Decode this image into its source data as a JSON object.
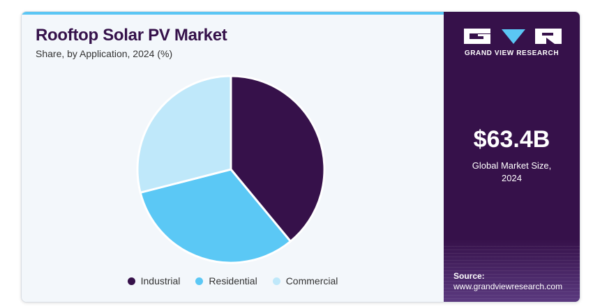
{
  "chart_data": {
    "type": "pie",
    "title": "Rooftop Solar PV Market",
    "subtitle": "Share, by Application, 2024 (%)",
    "categories": [
      "Industrial",
      "Residential",
      "Commercial"
    ],
    "values": [
      39,
      32,
      29
    ],
    "colors": [
      "#36114a",
      "#5bc8f5",
      "#bfe8fa"
    ],
    "legend_position": "bottom"
  },
  "sidebar": {
    "brand": "GRAND VIEW RESEARCH",
    "market_size": "$63.4B",
    "market_size_label_line1": "Global Market Size,",
    "market_size_label_line2": "2024",
    "source_label": "Source:",
    "source_url": "www.grandviewresearch.com",
    "logo_icon": "grand-view-research-logo",
    "accent": "#5bc6f4",
    "background": "#36114a"
  }
}
